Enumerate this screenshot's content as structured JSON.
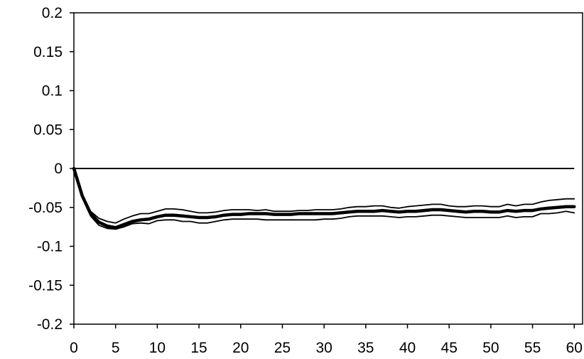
{
  "chart_data": {
    "type": "line",
    "title": "",
    "xlabel": "",
    "ylabel": "",
    "xlim": [
      0,
      61
    ],
    "ylim": [
      -0.2,
      0.2
    ],
    "grid": false,
    "x_ticks": [
      0,
      5,
      10,
      15,
      20,
      25,
      30,
      35,
      40,
      45,
      50,
      55,
      60
    ],
    "x_tick_labels": [
      "0",
      "5",
      "10",
      "15",
      "20",
      "25",
      "30",
      "35",
      "40",
      "45",
      "50",
      "55",
      "60"
    ],
    "y_ticks": [
      0.2,
      0.15,
      0.1,
      0.05,
      0,
      -0.05,
      -0.1,
      -0.15,
      -0.2
    ],
    "y_tick_labels": [
      "0.2",
      "0.15",
      "0.1",
      "0.05",
      "0",
      "-0.05",
      "-0.1",
      "-0.15",
      "-0.2"
    ],
    "zero_line": true,
    "line_color": "#000000",
    "x": [
      0,
      1,
      2,
      3,
      4,
      5,
      6,
      7,
      8,
      9,
      10,
      11,
      12,
      13,
      14,
      15,
      16,
      17,
      18,
      19,
      20,
      21,
      22,
      23,
      24,
      25,
      26,
      27,
      28,
      29,
      30,
      31,
      32,
      33,
      34,
      35,
      36,
      37,
      38,
      39,
      40,
      41,
      42,
      43,
      44,
      45,
      46,
      47,
      48,
      49,
      50,
      51,
      52,
      53,
      54,
      55,
      56,
      57,
      58,
      59,
      60
    ],
    "series": [
      {
        "values": [
          0,
          -0.035,
          -0.058,
          -0.069,
          -0.074,
          -0.076,
          -0.072,
          -0.068,
          -0.066,
          -0.065,
          -0.062,
          -0.06,
          -0.06,
          -0.061,
          -0.062,
          -0.063,
          -0.063,
          -0.062,
          -0.06,
          -0.059,
          -0.059,
          -0.058,
          -0.058,
          -0.058,
          -0.059,
          -0.059,
          -0.059,
          -0.058,
          -0.058,
          -0.058,
          -0.058,
          -0.058,
          -0.057,
          -0.056,
          -0.055,
          -0.055,
          -0.055,
          -0.054,
          -0.055,
          -0.056,
          -0.055,
          -0.055,
          -0.054,
          -0.053,
          -0.053,
          -0.054,
          -0.055,
          -0.056,
          -0.055,
          -0.055,
          -0.056,
          -0.056,
          -0.054,
          -0.055,
          -0.054,
          -0.054,
          -0.052,
          -0.051,
          -0.05,
          -0.049,
          -0.049
        ],
        "style": "central"
      },
      {
        "values": [
          0,
          -0.033,
          -0.055,
          -0.064,
          -0.068,
          -0.07,
          -0.065,
          -0.061,
          -0.058,
          -0.058,
          -0.055,
          -0.052,
          -0.052,
          -0.053,
          -0.055,
          -0.057,
          -0.057,
          -0.056,
          -0.054,
          -0.053,
          -0.053,
          -0.053,
          -0.054,
          -0.053,
          -0.055,
          -0.055,
          -0.055,
          -0.054,
          -0.054,
          -0.053,
          -0.053,
          -0.053,
          -0.052,
          -0.05,
          -0.049,
          -0.049,
          -0.048,
          -0.048,
          -0.05,
          -0.051,
          -0.049,
          -0.048,
          -0.047,
          -0.046,
          -0.046,
          -0.048,
          -0.049,
          -0.049,
          -0.048,
          -0.048,
          -0.049,
          -0.049,
          -0.046,
          -0.048,
          -0.046,
          -0.046,
          -0.043,
          -0.041,
          -0.04,
          -0.039,
          -0.039
        ],
        "style": "upper-band"
      },
      {
        "values": [
          0,
          -0.037,
          -0.061,
          -0.073,
          -0.077,
          -0.078,
          -0.075,
          -0.071,
          -0.07,
          -0.071,
          -0.067,
          -0.066,
          -0.066,
          -0.068,
          -0.068,
          -0.07,
          -0.07,
          -0.068,
          -0.066,
          -0.065,
          -0.065,
          -0.065,
          -0.065,
          -0.066,
          -0.066,
          -0.066,
          -0.066,
          -0.066,
          -0.066,
          -0.066,
          -0.065,
          -0.065,
          -0.064,
          -0.062,
          -0.061,
          -0.061,
          -0.061,
          -0.061,
          -0.062,
          -0.063,
          -0.062,
          -0.062,
          -0.061,
          -0.06,
          -0.06,
          -0.061,
          -0.062,
          -0.063,
          -0.063,
          -0.063,
          -0.063,
          -0.063,
          -0.061,
          -0.063,
          -0.062,
          -0.062,
          -0.058,
          -0.058,
          -0.057,
          -0.055,
          -0.057
        ],
        "style": "lower-band"
      }
    ]
  }
}
